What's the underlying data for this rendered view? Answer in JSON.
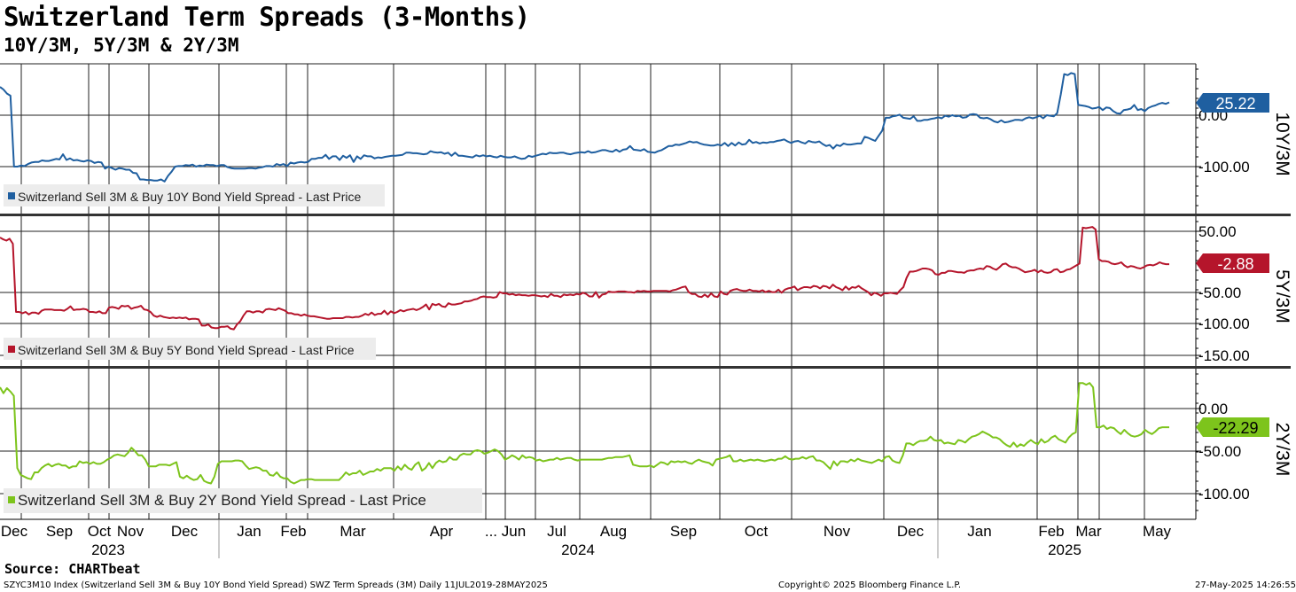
{
  "header": {
    "title": "Switzerland Term Spreads (3-Months)",
    "subtitle": "10Y/3M, 5Y/3M & 2Y/3M",
    "source": "Source: CHARTbeat"
  },
  "footer": {
    "left": "SZYC3M10 Index (Switzerland Sell 3M & Buy 10Y Bond Yield Spread) SWZ Term Spreads (3M)  Daily 11JUL2019-28MAY2025",
    "center": "Copyright© 2025 Bloomberg Finance L.P.",
    "right": "27-May-2025 14:26:55"
  },
  "chart_data": {
    "type": "line",
    "x_axis": {
      "months": [
        "Dec",
        "Sep",
        "Oct",
        "Nov",
        "Dec",
        "Jan",
        "Feb",
        "Mar",
        "Apr",
        "... Jun",
        "Jul",
        "Aug",
        "Sep",
        "Oct",
        "Nov",
        "Dec",
        "Jan",
        "Feb",
        "Mar",
        "May"
      ],
      "years": [
        "2023",
        "2024",
        "2025"
      ]
    },
    "panels": [
      {
        "axis_label": "10Y/3M",
        "color": "#1f5fa0",
        "legend": "Switzerland Sell 3M & Buy 10Y Bond Yield Spread - Last Price",
        "last_value": "25.22",
        "yticks": [
          "0.00",
          "-100.00"
        ],
        "ylim": [
          -180,
          100
        ],
        "values": [
          55,
          50,
          42,
          38,
          -100,
          -100,
          -98,
          -99,
          -95,
          -92,
          -91,
          -91,
          -88,
          -89,
          -89,
          -87,
          -85,
          -86,
          -76,
          -87,
          -84,
          -88,
          -87,
          -89,
          -90,
          -88,
          -89,
          -93,
          -91,
          -92,
          -104,
          -100,
          -103,
          -106,
          -103,
          -104,
          -106,
          -106,
          -112,
          -113,
          -125,
          -125,
          -126,
          -126,
          -127,
          -127,
          -125,
          -129,
          -118,
          -110,
          -100,
          -99,
          -99,
          -97,
          -98,
          -96,
          -100,
          -98,
          -99,
          -96,
          -97,
          -97,
          -99,
          -97,
          -97,
          -101,
          -103,
          -104,
          -104,
          -104,
          -104,
          -103,
          -103,
          -104,
          -102,
          -101,
          -99,
          -99,
          -100,
          -95,
          -97,
          -95,
          -99,
          -92,
          -94,
          -92,
          -91,
          -92,
          -91,
          -85,
          -85,
          -83,
          -83,
          -77,
          -85,
          -80,
          -80,
          -87,
          -79,
          -83,
          -78,
          -91,
          -80,
          -85,
          -78,
          -80,
          -80,
          -84,
          -82,
          -83,
          -81,
          -80,
          -79,
          -79,
          -78,
          -77,
          -73,
          -73,
          -74,
          -74,
          -75,
          -76,
          -75,
          -70,
          -72,
          -73,
          -72,
          -75,
          -73,
          -79,
          -73,
          -79,
          -79,
          -80,
          -81,
          -82,
          -78,
          -80,
          -78,
          -80,
          -79,
          -81,
          -82,
          -79,
          -81,
          -82,
          -82,
          -80,
          -83,
          -85,
          -84,
          -79,
          -81,
          -79,
          -77,
          -75,
          -76,
          -73,
          -74,
          -74,
          -73,
          -73,
          -75,
          -76,
          -74,
          -73,
          -72,
          -73,
          -70,
          -73,
          -72,
          -70,
          -68,
          -68,
          -70,
          -71,
          -67,
          -71,
          -67,
          -66,
          -60,
          -67,
          -68,
          -69,
          -66,
          -71,
          -72,
          -73,
          -70,
          -68,
          -64,
          -60,
          -60,
          -57,
          -58,
          -56,
          -54,
          -51,
          -53,
          -52,
          -55,
          -57,
          -58,
          -59,
          -59,
          -57,
          -59,
          -54,
          -60,
          -54,
          -59,
          -53,
          -57,
          -56,
          -48,
          -54,
          -52,
          -55,
          -53,
          -54,
          -52,
          -52,
          -50,
          -49,
          -47,
          -51,
          -54,
          -51,
          -50,
          -53,
          -55,
          -50,
          -52,
          -53,
          -51,
          -56,
          -60,
          -58,
          -65,
          -58,
          -60,
          -55,
          -57,
          -57,
          -56,
          -55,
          -55,
          -42,
          -44,
          -47,
          -50,
          -40,
          -30,
          -5,
          -5,
          -2,
          -1,
          1,
          -5,
          -6,
          -7,
          -2,
          -11,
          -11,
          -9,
          -9,
          -7,
          -6,
          -4,
          -6,
          -1,
          -3,
          0,
          -2,
          -1,
          -5,
          -4,
          1,
          2,
          1,
          -5,
          -6,
          -5,
          -8,
          -12,
          -14,
          -10,
          -14,
          -13,
          -11,
          -9,
          -9,
          -10,
          -6,
          -4,
          -6,
          -4,
          -1,
          -6,
          0,
          -1,
          -2,
          4,
          40,
          80,
          78,
          82,
          80,
          20,
          19,
          18,
          16,
          13,
          14,
          16,
          10,
          15,
          14,
          8,
          4,
          3,
          10,
          11,
          13,
          20,
          10,
          12,
          8,
          14,
          17,
          19,
          22,
          24,
          22,
          25
        ]
      },
      {
        "axis_label": "5Y/3M",
        "color": "#b5152b",
        "legend": "Switzerland Sell 3M & Buy 5Y Bond Yield Spread - Last Price",
        "last_value": "-2.88",
        "yticks": [
          "50.00",
          "-50.00",
          "-100.00",
          "-150.00"
        ],
        "ylim": [
          -165,
          80
        ],
        "values": [
          40,
          37,
          35,
          38,
          30,
          -80,
          -80,
          -82,
          -80,
          -84,
          -81,
          -81,
          -83,
          -78,
          -76,
          -76,
          -76,
          -77,
          -77,
          -77,
          -78,
          -75,
          -71,
          -77,
          -76,
          -76,
          -75,
          -76,
          -80,
          -80,
          -81,
          -79,
          -82,
          -82,
          -73,
          -72,
          -73,
          -75,
          -70,
          -71,
          -70,
          -75,
          -73,
          -72,
          -70,
          -76,
          -77,
          -80,
          -86,
          -88,
          -86,
          -88,
          -89,
          -90,
          -89,
          -90,
          -89,
          -90,
          -89,
          -92,
          -91,
          -91,
          -92,
          -102,
          -102,
          -100,
          -105,
          -106,
          -106,
          -104,
          -104,
          -103,
          -107,
          -108,
          -100,
          -95,
          -86,
          -79,
          -79,
          -81,
          -79,
          -79,
          -81,
          -76,
          -75,
          -76,
          -77,
          -74,
          -76,
          -78,
          -82,
          -82,
          -84,
          -84,
          -86,
          -84,
          -86,
          -87,
          -87,
          -88,
          -89,
          -90,
          -91,
          -91,
          -90,
          -90,
          -90,
          -90,
          -88,
          -88,
          -89,
          -88,
          -88,
          -86,
          -83,
          -85,
          -81,
          -85,
          -83,
          -83,
          -78,
          -84,
          -79,
          -82,
          -80,
          -77,
          -79,
          -77,
          -76,
          -75,
          -77,
          -75,
          -72,
          -68,
          -76,
          -67,
          -69,
          -67,
          -71,
          -72,
          -66,
          -68,
          -68,
          -67,
          -66,
          -63,
          -63,
          -62,
          -60,
          -59,
          -56,
          -55,
          -56,
          -56,
          -57,
          -56,
          -48,
          -50,
          -50,
          -52,
          -51,
          -53,
          -52,
          -53,
          -53,
          -54,
          -53,
          -53,
          -54,
          -55,
          -54,
          -56,
          -51,
          -54,
          -54,
          -56,
          -52,
          -53,
          -52,
          -53,
          -51,
          -52,
          -49,
          -51,
          -55,
          -55,
          -48,
          -57,
          -52,
          -51,
          -47,
          -48,
          -48,
          -47,
          -47,
          -47,
          -48,
          -48,
          -49,
          -46,
          -47,
          -46,
          -47,
          -47,
          -46,
          -46,
          -46,
          -46,
          -46,
          -47,
          -45,
          -44,
          -42,
          -40,
          -39,
          -48,
          -51,
          -51,
          -55,
          -56,
          -52,
          -56,
          -50,
          -55,
          -56,
          -47,
          -51,
          -52,
          -46,
          -44,
          -43,
          -45,
          -46,
          -46,
          -44,
          -46,
          -46,
          -47,
          -45,
          -48,
          -46,
          -48,
          -48,
          -44,
          -49,
          -44,
          -42,
          -41,
          -39,
          -45,
          -42,
          -40,
          -40,
          -41,
          -38,
          -39,
          -42,
          -38,
          -39,
          -42,
          -36,
          -40,
          -42,
          -45,
          -39,
          -44,
          -40,
          -41,
          -38,
          -42,
          -45,
          -48,
          -53,
          -49,
          -51,
          -54,
          -50,
          -50,
          -49,
          -50,
          -51,
          -45,
          -40,
          -25,
          -15,
          -15,
          -14,
          -12,
          -10,
          -10,
          -11,
          -13,
          -19,
          -20,
          -17,
          -17,
          -14,
          -14,
          -15,
          -16,
          -16,
          -17,
          -14,
          -13,
          -13,
          -11,
          -10,
          -11,
          -6,
          -7,
          -10,
          -12,
          -8,
          -3,
          -2,
          -6,
          -8,
          -8,
          -10,
          -13,
          -16,
          -15,
          -14,
          -12,
          -16,
          -13,
          -16,
          -17,
          -16,
          -12,
          -11,
          -16,
          -15,
          -12,
          -11,
          -8,
          -5,
          -2,
          56,
          55,
          56,
          57,
          53,
          5,
          2,
          2,
          1,
          -2,
          -3,
          -2,
          0,
          -5,
          -8,
          -6,
          -7,
          -9,
          -10,
          -8,
          -5,
          -4,
          -5,
          -3,
          0,
          -2,
          -3,
          -3
        ]
      },
      {
        "axis_label": "2Y/3M",
        "color": "#7dc41c",
        "legend": "Switzerland Sell 3M & Buy 2Y Bond Yield Spread - Last Price",
        "last_value": "-22.29",
        "yticks": [
          "0.00",
          "-50.00",
          "-100.00"
        ],
        "ylim": [
          -130,
          48
        ],
        "values": [
          25,
          18,
          24,
          20,
          15,
          -70,
          -78,
          -80,
          -82,
          -83,
          -75,
          -75,
          -70,
          -67,
          -65,
          -68,
          -66,
          -65,
          -67,
          -67,
          -70,
          -68,
          -68,
          -62,
          -64,
          -63,
          -65,
          -63,
          -65,
          -65,
          -63,
          -60,
          -58,
          -55,
          -54,
          -55,
          -56,
          -52,
          -46,
          -50,
          -55,
          -55,
          -60,
          -68,
          -68,
          -68,
          -66,
          -66,
          -66,
          -67,
          -65,
          -63,
          -80,
          -82,
          -79,
          -82,
          -84,
          -83,
          -78,
          -85,
          -87,
          -88,
          -80,
          -65,
          -62,
          -62,
          -62,
          -62,
          -61,
          -61,
          -62,
          -67,
          -71,
          -70,
          -69,
          -70,
          -73,
          -73,
          -78,
          -79,
          -75,
          -80,
          -82,
          -82,
          -86,
          -88,
          -86,
          -84,
          -84,
          -83,
          -83,
          -84,
          -84,
          -84,
          -84,
          -84,
          -84,
          -84,
          -84,
          -80,
          -75,
          -78,
          -76,
          -76,
          -73,
          -78,
          -76,
          -74,
          -74,
          -71,
          -73,
          -70,
          -70,
          -70,
          -73,
          -68,
          -72,
          -66,
          -70,
          -72,
          -66,
          -63,
          -73,
          -70,
          -64,
          -70,
          -64,
          -61,
          -63,
          -62,
          -57,
          -60,
          -60,
          -55,
          -53,
          -54,
          -54,
          -50,
          -49,
          -50,
          -53,
          -52,
          -50,
          -48,
          -50,
          -54,
          -60,
          -58,
          -55,
          -57,
          -60,
          -55,
          -58,
          -57,
          -58,
          -61,
          -60,
          -62,
          -61,
          -60,
          -60,
          -58,
          -60,
          -59,
          -58,
          -58,
          -60,
          -61,
          -60,
          -60,
          -60,
          -60,
          -60,
          -60,
          -60,
          -59,
          -58,
          -58,
          -57,
          -57,
          -57,
          -56,
          -55,
          -66,
          -67,
          -68,
          -68,
          -68,
          -67,
          -69,
          -66,
          -63,
          -64,
          -66,
          -62,
          -63,
          -62,
          -63,
          -62,
          -64,
          -65,
          -62,
          -60,
          -62,
          -63,
          -64,
          -67,
          -60,
          -59,
          -58,
          -57,
          -55,
          -62,
          -62,
          -60,
          -62,
          -61,
          -60,
          -61,
          -60,
          -61,
          -62,
          -61,
          -60,
          -61,
          -59,
          -59,
          -56,
          -59,
          -60,
          -59,
          -59,
          -57,
          -59,
          -57,
          -56,
          -61,
          -61,
          -63,
          -67,
          -71,
          -62,
          -67,
          -62,
          -62,
          -63,
          -60,
          -62,
          -59,
          -61,
          -62,
          -63,
          -64,
          -62,
          -60,
          -62,
          -57,
          -56,
          -61,
          -63,
          -64,
          -55,
          -41,
          -41,
          -43,
          -40,
          -38,
          -38,
          -37,
          -33,
          -37,
          -38,
          -37,
          -41,
          -40,
          -41,
          -42,
          -37,
          -38,
          -40,
          -36,
          -33,
          -32,
          -30,
          -27,
          -29,
          -31,
          -34,
          -34,
          -36,
          -40,
          -43,
          -45,
          -40,
          -45,
          -42,
          -44,
          -40,
          -37,
          -40,
          -42,
          -36,
          -40,
          -38,
          -34,
          -32,
          -36,
          -38,
          -40,
          -34,
          -30,
          -28,
          30,
          30,
          28,
          30,
          25,
          -22,
          -22,
          -20,
          -24,
          -22,
          -23,
          -27,
          -30,
          -25,
          -29,
          -32,
          -33,
          -32,
          -30,
          -25,
          -28,
          -30,
          -27,
          -23,
          -22,
          -22,
          -22
        ]
      }
    ]
  }
}
